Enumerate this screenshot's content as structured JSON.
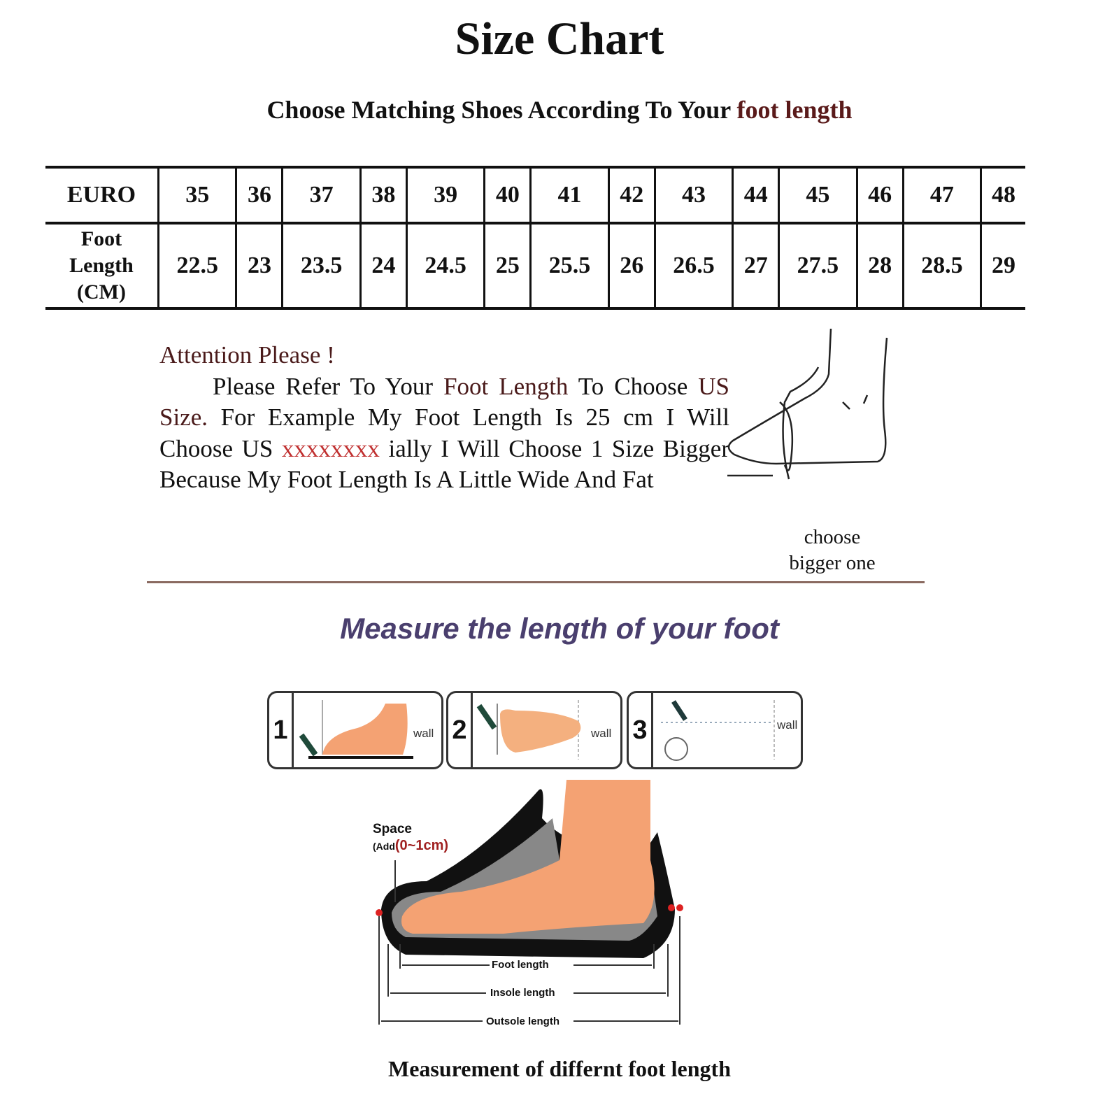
{
  "title": "Size Chart",
  "subtitle": {
    "prefix": "Choose Matching Shoes According To Your ",
    "highlight": "foot length"
  },
  "table": {
    "row_headers": [
      "EURO",
      "Foot",
      "Length",
      "(CM)"
    ],
    "euro": [
      "35",
      "36",
      "37",
      "38",
      "39",
      "40",
      "41",
      "42",
      "43",
      "44",
      "45",
      "46",
      "47",
      "48"
    ],
    "foot_length_cm": [
      "22.5",
      "23",
      "23.5",
      "24",
      "24.5",
      "25",
      "25.5",
      "26",
      "26.5",
      "27",
      "27.5",
      "28",
      "28.5",
      "29"
    ]
  },
  "attention": {
    "heading": "Attention Please !",
    "p1": "Please Refer To Your ",
    "p1_hl": "Foot Length",
    "p1_end": " To Choose",
    "p2_hl": "US Size.",
    "p2": " For Example My Foot Length Is 25 cm I Will Choose US ",
    "p2_red": "xxxxxxxx",
    "p2_end": " ially I Will Choose 1 Size Bigger Because My Foot Length Is A Little Wide And Fat"
  },
  "choose_note": [
    "choose",
    "bigger one"
  ],
  "measure_title": "Measure the length of your foot",
  "steps": [
    {
      "num": "1",
      "wall": "wall"
    },
    {
      "num": "2",
      "wall": "wall"
    },
    {
      "num": "3",
      "wall": "wall"
    }
  ],
  "shoe_diagram": {
    "space": "Space",
    "add": "(Add",
    "add_range": "(0~1cm)",
    "foot_length": "Foot length",
    "insole_length": "Insole length",
    "outsole_length": "Outsole length"
  },
  "caption": "Measurement of differnt foot length",
  "colors": {
    "highlight": "#5a1a1a",
    "red": "#c03030",
    "measure_title": "#4a3f6e",
    "skin": "#f4a273"
  }
}
